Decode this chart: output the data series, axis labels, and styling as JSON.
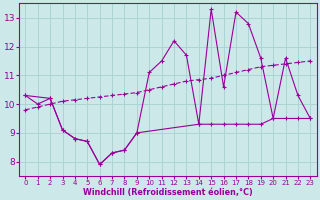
{
  "xlabel": "Windchill (Refroidissement éolien,°C)",
  "background_color": "#cce8e8",
  "grid_color": "#aad4d4",
  "line_color": "#990099",
  "xlim": [
    -0.5,
    23.5
  ],
  "ylim": [
    7.5,
    13.5
  ],
  "xticks": [
    0,
    1,
    2,
    3,
    4,
    5,
    6,
    7,
    8,
    9,
    10,
    11,
    12,
    13,
    14,
    15,
    16,
    17,
    18,
    19,
    20,
    21,
    22,
    23
  ],
  "yticks": [
    8,
    9,
    10,
    11,
    12,
    13
  ],
  "zigzag_x": [
    0,
    1,
    2,
    3,
    4,
    5,
    6,
    7,
    8,
    9,
    10,
    11,
    12,
    13,
    14,
    15,
    16,
    17,
    18,
    19,
    20,
    21,
    22,
    23
  ],
  "zigzag_y": [
    10.3,
    10.0,
    10.2,
    9.1,
    8.8,
    8.7,
    7.9,
    8.3,
    8.4,
    9.0,
    11.1,
    11.5,
    12.2,
    11.7,
    9.3,
    13.3,
    10.6,
    13.2,
    12.8,
    11.6,
    9.5,
    11.6,
    10.3,
    9.5
  ],
  "flat_x": [
    0,
    2,
    3,
    4,
    5,
    6,
    7,
    8,
    9,
    14,
    15,
    16,
    17,
    18,
    19,
    20,
    21,
    22,
    23
  ],
  "flat_y": [
    10.3,
    10.2,
    9.1,
    8.8,
    8.7,
    7.9,
    8.3,
    8.4,
    9.0,
    9.3,
    9.3,
    9.3,
    9.3,
    9.3,
    9.3,
    9.5,
    9.5,
    9.5,
    9.5
  ],
  "trend_x": [
    0,
    1,
    2,
    3,
    4,
    5,
    6,
    7,
    8,
    9,
    10,
    11,
    12,
    13,
    14,
    15,
    16,
    17,
    18,
    19,
    20,
    21,
    22,
    23
  ],
  "trend_y": [
    9.8,
    9.9,
    10.0,
    10.1,
    10.15,
    10.2,
    10.25,
    10.3,
    10.35,
    10.4,
    10.5,
    10.6,
    10.7,
    10.8,
    10.85,
    10.9,
    11.0,
    11.1,
    11.2,
    11.3,
    11.35,
    11.4,
    11.45,
    11.5
  ]
}
